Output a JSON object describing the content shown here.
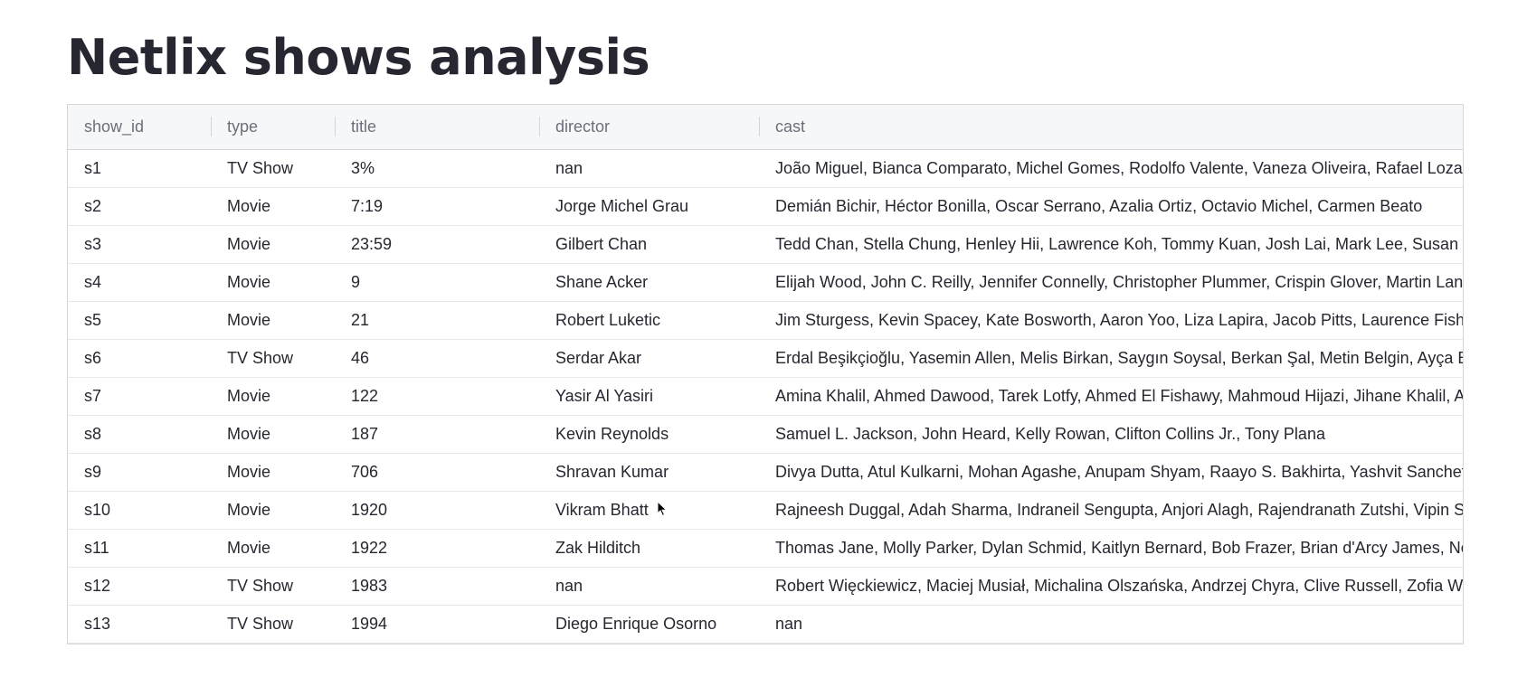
{
  "page": {
    "title": "Netlix shows analysis"
  },
  "table": {
    "columns": [
      "show_id",
      "type",
      "title",
      "director",
      "cast"
    ],
    "rows": [
      [
        "s1",
        "TV Show",
        "3%",
        "nan",
        "João Miguel, Bianca Comparato, Michel Gomes, Rodolfo Valente, Vaneza Oliveira, Rafael Lozan"
      ],
      [
        "s2",
        "Movie",
        "7:19",
        "Jorge Michel Grau",
        "Demián Bichir, Héctor Bonilla, Oscar Serrano, Azalia Ortiz, Octavio Michel, Carmen Beato"
      ],
      [
        "s3",
        "Movie",
        "23:59",
        "Gilbert Chan",
        "Tedd Chan, Stella Chung, Henley Hii, Lawrence Koh, Tommy Kuan, Josh Lai, Mark Lee, Susan Le"
      ],
      [
        "s4",
        "Movie",
        "9",
        "Shane Acker",
        "Elijah Wood, John C. Reilly, Jennifer Connelly, Christopher Plummer, Crispin Glover, Martin Land"
      ],
      [
        "s5",
        "Movie",
        "21",
        "Robert Luketic",
        "Jim Sturgess, Kevin Spacey, Kate Bosworth, Aaron Yoo, Liza Lapira, Jacob Pitts, Laurence Fishb"
      ],
      [
        "s6",
        "TV Show",
        "46",
        "Serdar Akar",
        "Erdal Beşikçioğlu, Yasemin Allen, Melis Birkan, Saygın Soysal, Berkan Şal, Metin Belgin, Ayça Er"
      ],
      [
        "s7",
        "Movie",
        "122",
        "Yasir Al Yasiri",
        "Amina Khalil, Ahmed Dawood, Tarek Lotfy, Ahmed El Fishawy, Mahmoud Hijazi, Jihane Khalil, As"
      ],
      [
        "s8",
        "Movie",
        "187",
        "Kevin Reynolds",
        "Samuel L. Jackson, John Heard, Kelly Rowan, Clifton Collins Jr., Tony Plana"
      ],
      [
        "s9",
        "Movie",
        "706",
        "Shravan Kumar",
        "Divya Dutta, Atul Kulkarni, Mohan Agashe, Anupam Shyam, Raayo S. Bakhirta, Yashvit Sancheti"
      ],
      [
        "s10",
        "Movie",
        "1920",
        "Vikram Bhatt",
        "Rajneesh Duggal, Adah Sharma, Indraneil Sengupta, Anjori Alagh, Rajendranath Zutshi, Vipin Sh"
      ],
      [
        "s11",
        "Movie",
        "1922",
        "Zak Hilditch",
        "Thomas Jane, Molly Parker, Dylan Schmid, Kaitlyn Bernard, Bob Frazer, Brian d'Arcy James, Ne"
      ],
      [
        "s12",
        "TV Show",
        "1983",
        "nan",
        "Robert Więckiewicz, Maciej Musiał, Michalina Olszańska, Andrzej Chyra, Clive Russell, Zofia Wi"
      ],
      [
        "s13",
        "TV Show",
        "1994",
        "Diego Enrique Osorno",
        "nan"
      ]
    ]
  },
  "cursor": {
    "icon": "mouse-pointer-icon"
  }
}
